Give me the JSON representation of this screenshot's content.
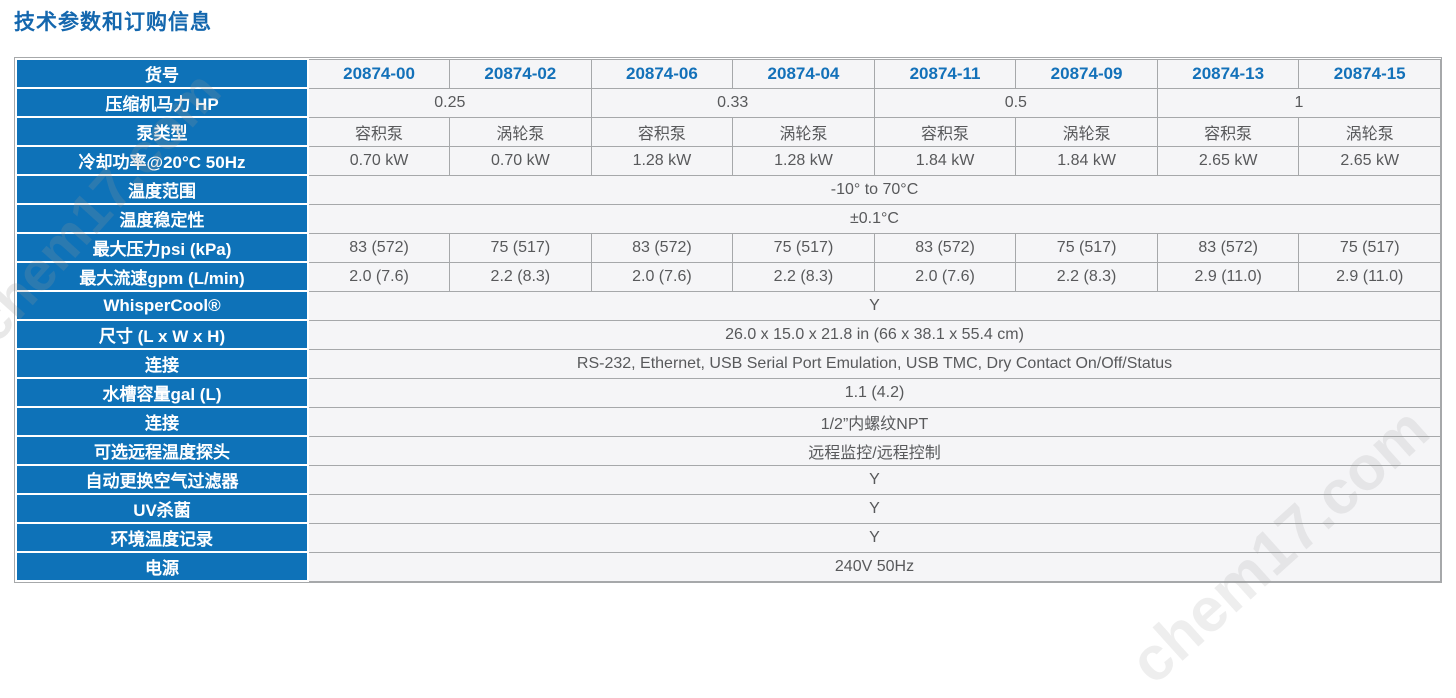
{
  "page": {
    "title": "技术参数和订购信息"
  },
  "watermark": {
    "text": "chem17.com"
  },
  "colors": {
    "accent_blue": "#0E72B8",
    "title_blue": "#1467AE",
    "model_text_blue": "#1371B9",
    "cell_bg": "#F5F5F7",
    "cell_text": "#58595B",
    "border_gray": "#A6A8AA"
  },
  "table": {
    "article_row": {
      "label": "货号",
      "models": [
        "20874-00",
        "20874-02",
        "20874-06",
        "20874-04",
        "20874-11",
        "20874-09",
        "20874-13",
        "20874-15"
      ]
    },
    "rows": [
      {
        "label": "压缩机马力 HP",
        "cells": [
          {
            "text": "0.25",
            "colspan": 2
          },
          {
            "text": "0.33",
            "colspan": 2
          },
          {
            "text": "0.5",
            "colspan": 2
          },
          {
            "text": "1",
            "colspan": 2
          }
        ]
      },
      {
        "label": "泵类型",
        "cells": [
          {
            "text": "容积泵"
          },
          {
            "text": "涡轮泵"
          },
          {
            "text": "容积泵"
          },
          {
            "text": "涡轮泵"
          },
          {
            "text": "容积泵"
          },
          {
            "text": "涡轮泵"
          },
          {
            "text": "容积泵"
          },
          {
            "text": "涡轮泵"
          }
        ]
      },
      {
        "label": "冷却功率@20°C 50Hz",
        "cells": [
          {
            "text": "0.70 kW"
          },
          {
            "text": "0.70 kW"
          },
          {
            "text": "1.28 kW"
          },
          {
            "text": "1.28 kW"
          },
          {
            "text": "1.84 kW"
          },
          {
            "text": "1.84 kW"
          },
          {
            "text": "2.65 kW"
          },
          {
            "text": "2.65 kW"
          }
        ]
      },
      {
        "label": "温度范围",
        "cells": [
          {
            "text": "-10° to 70°C",
            "colspan": 8
          }
        ]
      },
      {
        "label": "温度稳定性",
        "cells": [
          {
            "text": "±0.1°C",
            "colspan": 8
          }
        ]
      },
      {
        "label": "最大压力psi (kPa)",
        "cells": [
          {
            "text": "83 (572)"
          },
          {
            "text": "75 (517)"
          },
          {
            "text": "83 (572)"
          },
          {
            "text": "75 (517)"
          },
          {
            "text": "83 (572)"
          },
          {
            "text": "75 (517)"
          },
          {
            "text": "83 (572)"
          },
          {
            "text": "75 (517)"
          }
        ]
      },
      {
        "label": "最大流速gpm (L/min)",
        "cells": [
          {
            "text": "2.0 (7.6)"
          },
          {
            "text": "2.2 (8.3)"
          },
          {
            "text": "2.0 (7.6)"
          },
          {
            "text": "2.2 (8.3)"
          },
          {
            "text": "2.0 (7.6)"
          },
          {
            "text": "2.2 (8.3)"
          },
          {
            "text": "2.9 (11.0)"
          },
          {
            "text": "2.9 (11.0)"
          }
        ]
      },
      {
        "label": "WhisperCool®",
        "cells": [
          {
            "text": "Y",
            "colspan": 8
          }
        ]
      },
      {
        "label": "尺寸 (L x W x H)",
        "cells": [
          {
            "text": "26.0 x 15.0 x 21.8 in (66 x 38.1 x 55.4 cm)",
            "colspan": 8
          }
        ]
      },
      {
        "label": "连接",
        "cells": [
          {
            "text": "RS-232, Ethernet, USB Serial Port Emulation, USB TMC, Dry Contact On/Off/Status",
            "colspan": 8
          }
        ]
      },
      {
        "label": "水槽容量gal (L)",
        "cells": [
          {
            "text": "1.1 (4.2)",
            "colspan": 8
          }
        ]
      },
      {
        "label": "连接",
        "cells": [
          {
            "text": "1/2”内螺纹NPT",
            "colspan": 8
          }
        ]
      },
      {
        "label": "可选远程温度探头",
        "cells": [
          {
            "text": "远程监控/远程控制",
            "colspan": 8
          }
        ]
      },
      {
        "label": "自动更换空气过滤器",
        "cells": [
          {
            "text": "Y",
            "colspan": 8
          }
        ]
      },
      {
        "label": "UV杀菌",
        "cells": [
          {
            "text": "Y",
            "colspan": 8
          }
        ]
      },
      {
        "label": "环境温度记录",
        "cells": [
          {
            "text": "Y",
            "colspan": 8
          }
        ]
      },
      {
        "label": "电源",
        "cells": [
          {
            "text": "240V 50Hz",
            "colspan": 8
          }
        ]
      }
    ]
  }
}
